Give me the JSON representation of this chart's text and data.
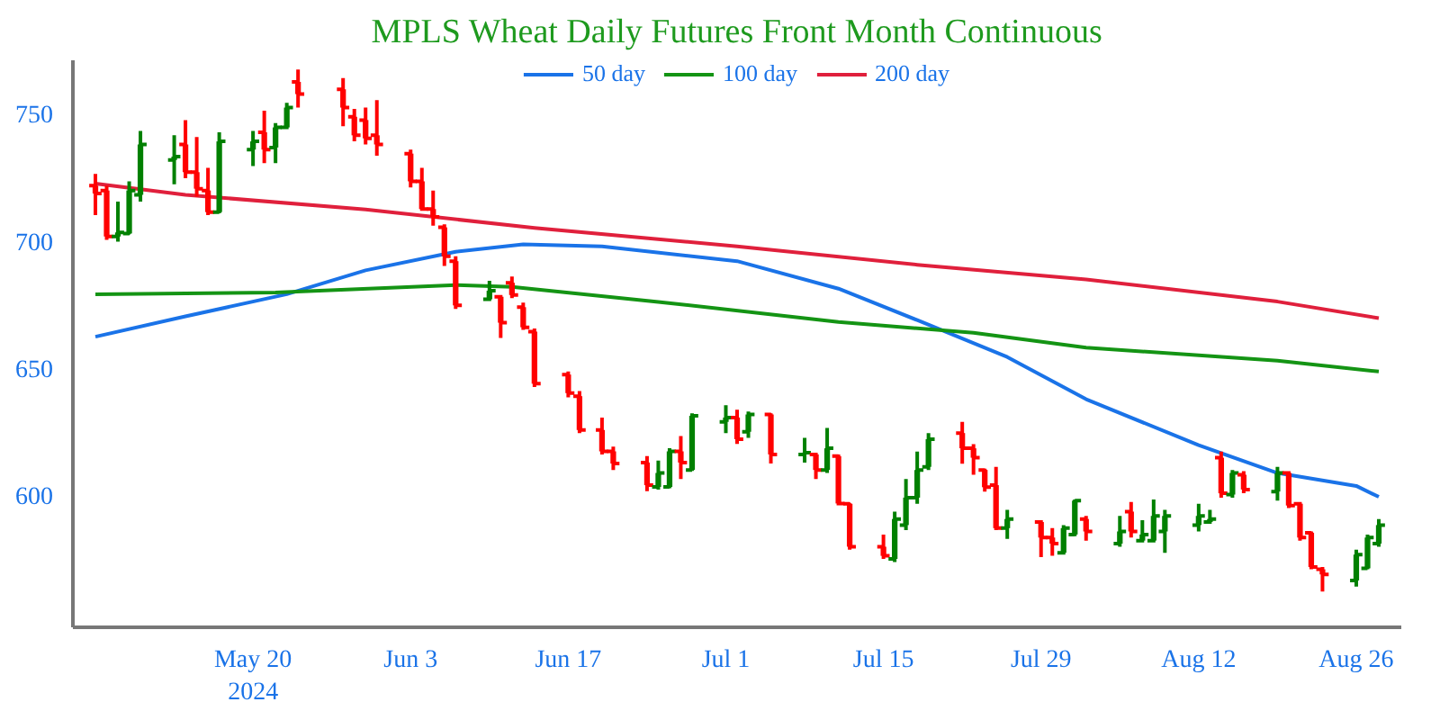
{
  "chart_data": {
    "type": "candlestick",
    "title": "MPLS Wheat Daily Futures Front Month Continuous",
    "x": [
      "2024-05-06",
      "2024-05-07",
      "2024-05-08",
      "2024-05-09",
      "2024-05-10",
      "2024-05-13",
      "2024-05-14",
      "2024-05-15",
      "2024-05-16",
      "2024-05-17",
      "2024-05-20",
      "2024-05-21",
      "2024-05-22",
      "2024-05-23",
      "2024-05-24",
      "2024-05-28",
      "2024-05-29",
      "2024-05-30",
      "2024-05-31",
      "2024-06-03",
      "2024-06-04",
      "2024-06-05",
      "2024-06-06",
      "2024-06-07",
      "2024-06-10",
      "2024-06-11",
      "2024-06-12",
      "2024-06-13",
      "2024-06-14",
      "2024-06-17",
      "2024-06-18",
      "2024-06-20",
      "2024-06-21",
      "2024-06-24",
      "2024-06-25",
      "2024-06-26",
      "2024-06-27",
      "2024-06-28",
      "2024-07-01",
      "2024-07-02",
      "2024-07-03",
      "2024-07-05",
      "2024-07-08",
      "2024-07-09",
      "2024-07-10",
      "2024-07-11",
      "2024-07-12",
      "2024-07-15",
      "2024-07-16",
      "2024-07-17",
      "2024-07-18",
      "2024-07-19",
      "2024-07-22",
      "2024-07-23",
      "2024-07-24",
      "2024-07-25",
      "2024-07-26",
      "2024-07-29",
      "2024-07-30",
      "2024-07-31",
      "2024-08-01",
      "2024-08-02",
      "2024-08-05",
      "2024-08-06",
      "2024-08-07",
      "2024-08-08",
      "2024-08-09",
      "2024-08-12",
      "2024-08-13",
      "2024-08-14",
      "2024-08-15",
      "2024-08-16",
      "2024-08-19",
      "2024-08-20",
      "2024-08-21",
      "2024-08-22",
      "2024-08-23",
      "2024-08-26",
      "2024-08-27",
      "2024-08-28"
    ],
    "ohlc": [
      [
        721.7,
        726.3,
        710.1,
        718.6
      ],
      [
        719.8,
        721.7,
        700.4,
        701.7
      ],
      [
        701.7,
        715.4,
        699.7,
        703.3
      ],
      [
        702.9,
        723.4,
        702.9,
        719.8
      ],
      [
        718.1,
        743.2,
        715.4,
        737.9
      ],
      [
        731.8,
        741.5,
        722.2,
        733.1
      ],
      [
        737.9,
        747.5,
        724.6,
        727.0
      ],
      [
        727.0,
        740.8,
        717.4,
        720.5
      ],
      [
        719.8,
        728.7,
        710.1,
        711.3
      ],
      [
        711.3,
        742.7,
        710.8,
        739.1
      ],
      [
        735.9,
        743.2,
        729.4,
        739.1
      ],
      [
        742.7,
        751.2,
        730.6,
        735.9
      ],
      [
        736.7,
        746.3,
        730.6,
        744.6
      ],
      [
        744.6,
        754.3,
        743.9,
        752.4
      ],
      [
        762.5,
        767.4,
        752.4,
        757.7
      ],
      [
        759.6,
        764.0,
        745.1,
        752.4
      ],
      [
        748.8,
        751.9,
        739.1,
        741.5
      ],
      [
        747.5,
        752.4,
        737.9,
        740.3
      ],
      [
        741.5,
        755.3,
        733.5,
        737.9
      ],
      [
        734.3,
        735.9,
        721.0,
        723.4
      ],
      [
        723.4,
        728.7,
        711.8,
        712.5
      ],
      [
        712.5,
        719.8,
        706.0,
        709.4
      ],
      [
        705.3,
        706.5,
        690.1,
        693.9
      ],
      [
        692.0,
        693.9,
        673.2,
        674.6
      ],
      [
        677.0,
        684.3,
        676.3,
        680.4
      ],
      [
        678.0,
        678.7,
        661.8,
        667.8
      ],
      [
        683.5,
        686.0,
        677.5,
        678.7
      ],
      [
        673.9,
        675.7,
        665.0,
        666.0
      ],
      [
        664.3,
        665.5,
        642.5,
        643.8
      ],
      [
        647.4,
        648.6,
        638.4,
        640.1
      ],
      [
        638.9,
        640.9,
        624.4,
        625.6
      ],
      [
        625.6,
        630.5,
        616.0,
        617.2
      ],
      [
        617.2,
        619.1,
        609.9,
        612.4
      ],
      [
        612.8,
        615.3,
        601.5,
        603.9
      ],
      [
        603.2,
        613.6,
        602.2,
        608.7
      ],
      [
        603.2,
        618.4,
        602.7,
        617.2
      ],
      [
        617.2,
        623.2,
        606.3,
        612.8
      ],
      [
        609.9,
        632.2,
        609.5,
        631.2
      ],
      [
        628.8,
        635.3,
        624.4,
        630.5
      ],
      [
        630.5,
        633.6,
        620.1,
        622.0
      ],
      [
        624.9,
        632.9,
        622.5,
        631.7
      ],
      [
        631.7,
        632.2,
        612.4,
        616.0
      ],
      [
        616.0,
        622.5,
        612.8,
        616.7
      ],
      [
        616.0,
        616.7,
        606.3,
        609.9
      ],
      [
        609.9,
        626.4,
        608.7,
        618.4
      ],
      [
        615.3,
        616.0,
        596.0,
        596.7
      ],
      [
        596.6,
        596.6,
        578.5,
        579.7
      ],
      [
        579.7,
        584.5,
        574.9,
        576.1
      ],
      [
        574.9,
        593.5,
        573.7,
        590.6
      ],
      [
        588.2,
        606.3,
        586.2,
        599.0
      ],
      [
        599.0,
        617.1,
        596.6,
        609.9
      ],
      [
        611.1,
        624.4,
        609.9,
        622.0
      ],
      [
        624.4,
        628.8,
        612.3,
        618.4
      ],
      [
        618.4,
        620.0,
        608.0,
        614.7
      ],
      [
        609.9,
        610.4,
        601.4,
        603.1
      ],
      [
        603.9,
        611.1,
        586.2,
        587.0
      ],
      [
        587.0,
        594.2,
        582.8,
        590.6
      ],
      [
        589.4,
        590.1,
        575.6,
        583.3
      ],
      [
        583.3,
        587.0,
        576.1,
        580.9
      ],
      [
        577.3,
        588.2,
        576.6,
        587.0
      ],
      [
        584.5,
        598.3,
        583.8,
        597.8
      ],
      [
        590.6,
        591.8,
        582.1,
        585.7
      ],
      [
        580.9,
        591.8,
        579.7,
        585.7
      ],
      [
        593.5,
        597.3,
        583.3,
        585.7
      ],
      [
        582.1,
        590.1,
        581.4,
        584.5
      ],
      [
        582.1,
        598.3,
        581.4,
        591.8
      ],
      [
        585.7,
        594.2,
        577.3,
        591.8
      ],
      [
        588.2,
        596.6,
        585.7,
        591.8
      ],
      [
        589.4,
        594.2,
        588.7,
        590.6
      ],
      [
        614.7,
        617.1,
        599.0,
        600.7
      ],
      [
        600.2,
        609.9,
        599.0,
        608.7
      ],
      [
        608.0,
        609.4,
        600.7,
        602.2
      ],
      [
        601.4,
        611.1,
        597.8,
        608.7
      ],
      [
        608.7,
        609.4,
        594.9,
        595.9
      ],
      [
        596.6,
        597.3,
        582.1,
        583.3
      ],
      [
        585.2,
        585.7,
        570.8,
        571.7
      ],
      [
        570.8,
        571.7,
        562.1,
        568.8
      ],
      [
        566.4,
        578.5,
        564.0,
        576.6
      ],
      [
        571.2,
        584.5,
        570.8,
        583.3
      ],
      [
        580.9,
        590.6,
        579.7,
        588.2
      ]
    ],
    "colors": [
      "#ff0000",
      "#ff0000",
      "#008000",
      "#008000",
      "#008000",
      "#008000",
      "#ff0000",
      "#ff0000",
      "#ff0000",
      "#008000",
      "#008000",
      "#ff0000",
      "#008000",
      "#008000",
      "#ff0000",
      "#ff0000",
      "#ff0000",
      "#ff0000",
      "#ff0000",
      "#ff0000",
      "#ff0000",
      "#ff0000",
      "#ff0000",
      "#ff0000",
      "#008000",
      "#ff0000",
      "#ff0000",
      "#ff0000",
      "#ff0000",
      "#ff0000",
      "#ff0000",
      "#ff0000",
      "#ff0000",
      "#ff0000",
      "#008000",
      "#008000",
      "#ff0000",
      "#008000",
      "#008000",
      "#ff0000",
      "#008000",
      "#ff0000",
      "#008000",
      "#ff0000",
      "#008000",
      "#ff0000",
      "#ff0000",
      "#ff0000",
      "#008000",
      "#008000",
      "#008000",
      "#008000",
      "#ff0000",
      "#ff0000",
      "#ff0000",
      "#ff0000",
      "#008000",
      "#ff0000",
      "#ff0000",
      "#008000",
      "#008000",
      "#ff0000",
      "#008000",
      "#ff0000",
      "#008000",
      "#008000",
      "#008000",
      "#008000",
      "#008000",
      "#ff0000",
      "#008000",
      "#ff0000",
      "#008000",
      "#ff0000",
      "#ff0000",
      "#ff0000",
      "#ff0000",
      "#008000",
      "#008000",
      "#008000"
    ],
    "series": [
      {
        "type": "line",
        "name": "50 day",
        "color": "#1a73e8",
        "x": [
          "2024-05-06",
          "2024-05-14",
          "2024-05-23",
          "2024-05-30",
          "2024-06-07",
          "2024-06-13",
          "2024-06-20",
          "2024-07-02",
          "2024-07-11",
          "2024-07-18",
          "2024-07-26",
          "2024-08-02",
          "2024-08-12",
          "2024-08-19",
          "2024-08-26",
          "2024-08-28"
        ],
        "values": [
          662.3,
          670.3,
          679,
          688.4,
          695.7,
          698.6,
          697.8,
          692,
          681.2,
          668.8,
          654.3,
          637.7,
          619.6,
          608.7,
          603.6,
          599.3
        ]
      },
      {
        "type": "line",
        "name": "100 day",
        "color": "#149414",
        "x": [
          "2024-05-06",
          "2024-05-22",
          "2024-06-07",
          "2024-06-12",
          "2024-06-25",
          "2024-07-11",
          "2024-07-23",
          "2024-08-02",
          "2024-08-19",
          "2024-08-28"
        ],
        "values": [
          679,
          679.7,
          682.6,
          681.9,
          676,
          668.1,
          663.8,
          658,
          652.9,
          648.6
        ]
      },
      {
        "type": "line",
        "name": "200 day",
        "color": "#e0203c",
        "x": [
          "2024-05-06",
          "2024-05-14",
          "2024-05-30",
          "2024-06-14",
          "2024-07-02",
          "2024-07-18",
          "2024-08-02",
          "2024-08-19",
          "2024-08-28"
        ],
        "values": [
          722.5,
          718.1,
          712.3,
          705.1,
          697.8,
          690.6,
          684.8,
          676.1,
          669.6
        ]
      }
    ],
    "xlim": [
      "2024-05-04",
      "2024-08-30"
    ],
    "ylim": [
      548,
      771
    ],
    "yticks": [
      600,
      650,
      700,
      750
    ],
    "xticks": [
      {
        "value": "2024-05-20",
        "label": "May 20\n2024"
      },
      {
        "value": "2024-06-03",
        "label": "Jun 3"
      },
      {
        "value": "2024-06-17",
        "label": "Jun 17"
      },
      {
        "value": "2024-07-01",
        "label": "Jul 1"
      },
      {
        "value": "2024-07-15",
        "label": "Jul 15"
      },
      {
        "value": "2024-07-29",
        "label": "Jul 29"
      },
      {
        "value": "2024-08-12",
        "label": "Aug 12"
      },
      {
        "value": "2024-08-26",
        "label": "Aug 26"
      }
    ],
    "legend": "top",
    "grid": false
  }
}
